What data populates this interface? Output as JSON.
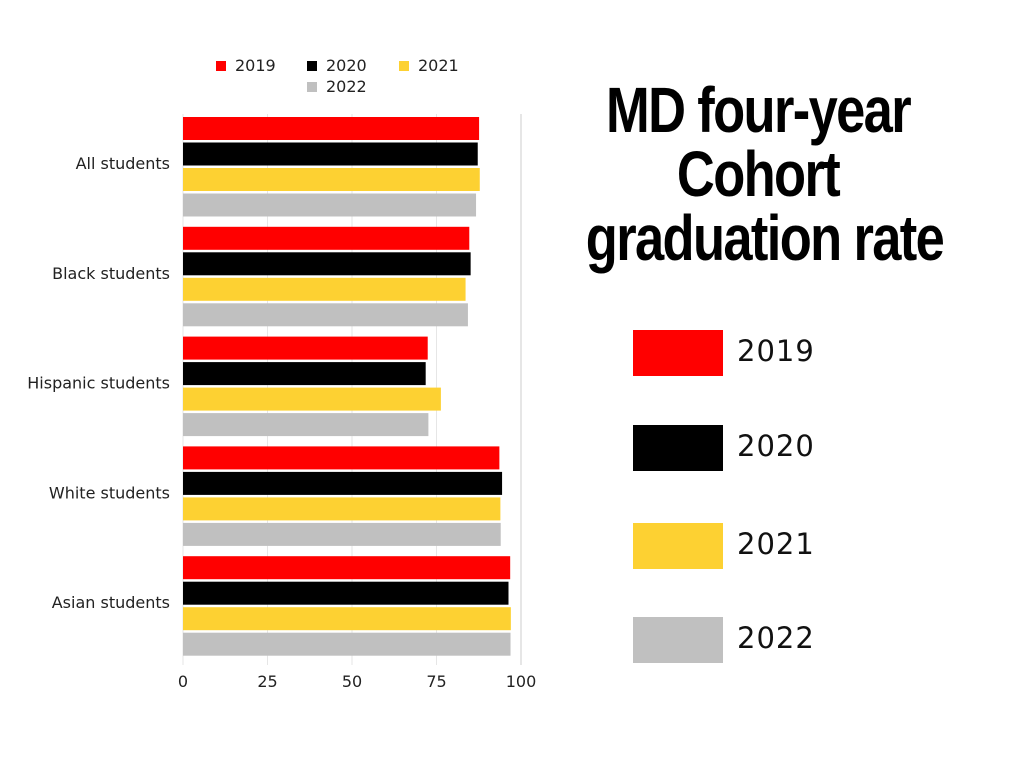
{
  "title_lines": [
    "MD four-year",
    "Cohort",
    "graduation rate"
  ],
  "colors": {
    "2019": "#ff0000",
    "2020": "#000000",
    "2021": "#fdd132",
    "2022": "#c0c0c0"
  },
  "big_legend": [
    {
      "label": "2019",
      "color": "#ff0000"
    },
    {
      "label": "2020",
      "color": "#000000"
    },
    {
      "label": "2021",
      "color": "#fdd132"
    },
    {
      "label": "2022",
      "color": "#c0c0c0"
    }
  ],
  "chart_data": {
    "type": "bar",
    "orientation": "horizontal",
    "categories": [
      "All students",
      "Black students",
      "Hispanic students",
      "White students",
      "Asian students"
    ],
    "series": [
      {
        "name": "2019",
        "color": "#ff0000",
        "values": [
          87.6,
          84.7,
          72.4,
          93.6,
          96.8
        ]
      },
      {
        "name": "2020",
        "color": "#000000",
        "values": [
          87.2,
          85.1,
          71.8,
          94.4,
          96.3
        ]
      },
      {
        "name": "2021",
        "color": "#fdd132",
        "values": [
          87.8,
          83.6,
          76.3,
          93.9,
          97.0
        ]
      },
      {
        "name": "2022",
        "color": "#c0c0c0",
        "values": [
          86.7,
          84.3,
          72.6,
          94.0,
          96.9
        ]
      }
    ],
    "xlim": [
      0,
      100
    ],
    "xticks": [
      0,
      25,
      50,
      75,
      100
    ],
    "grid": true,
    "legend_position": "top"
  }
}
